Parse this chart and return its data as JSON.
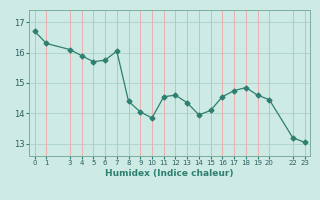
{
  "x": [
    0,
    1,
    3,
    4,
    5,
    6,
    7,
    8,
    9,
    10,
    11,
    12,
    13,
    14,
    15,
    16,
    17,
    18,
    19,
    20,
    22,
    23
  ],
  "y": [
    16.7,
    16.3,
    16.1,
    15.9,
    15.7,
    15.75,
    16.05,
    14.4,
    14.05,
    13.85,
    14.55,
    14.6,
    14.35,
    13.95,
    14.1,
    14.55,
    14.75,
    14.85,
    14.6,
    14.45,
    13.2,
    13.05
  ],
  "yticks": [
    13,
    14,
    15,
    16,
    17
  ],
  "ylim": [
    12.6,
    17.4
  ],
  "xlim": [
    -0.5,
    23.5
  ],
  "xlabel": "Humidex (Indice chaleur)",
  "line_color": "#2e7f6f",
  "marker": "D",
  "marker_size": 2.5,
  "bg_color": "#cdeae4",
  "grid_color_h": "#b0d4ce",
  "grid_color_v": "#e8b0b0"
}
